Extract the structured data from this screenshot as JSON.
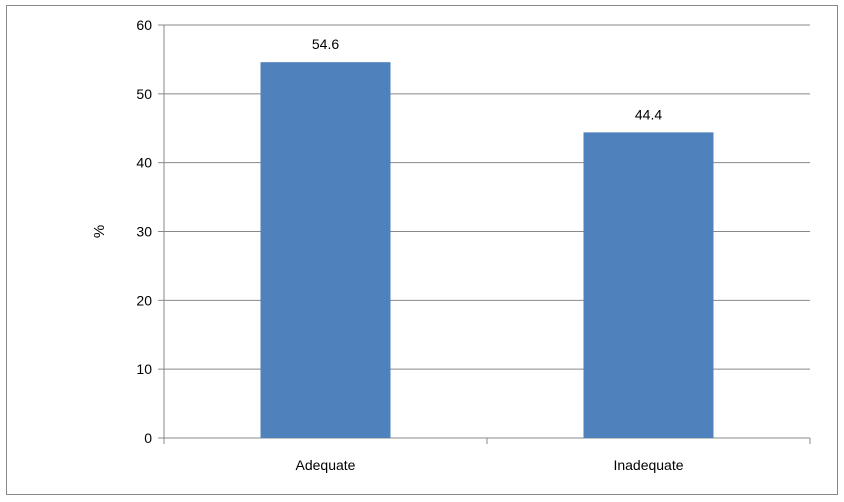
{
  "chart_data": {
    "type": "bar",
    "categories": [
      "Adequate",
      "Inadequate"
    ],
    "values": [
      54.6,
      44.4
    ],
    "data_labels": [
      "54.6",
      "44.4"
    ],
    "title": "",
    "xlabel": "",
    "ylabel": "%",
    "ylim": [
      0,
      60
    ],
    "yticks": [
      0,
      10,
      20,
      30,
      40,
      50,
      60
    ],
    "ytick_labels": [
      "0",
      "10",
      "20",
      "30",
      "40",
      "50",
      "60"
    ],
    "grid": true,
    "legend": "none",
    "bar_color": "#4f81bd",
    "grid_color": "#888888"
  }
}
